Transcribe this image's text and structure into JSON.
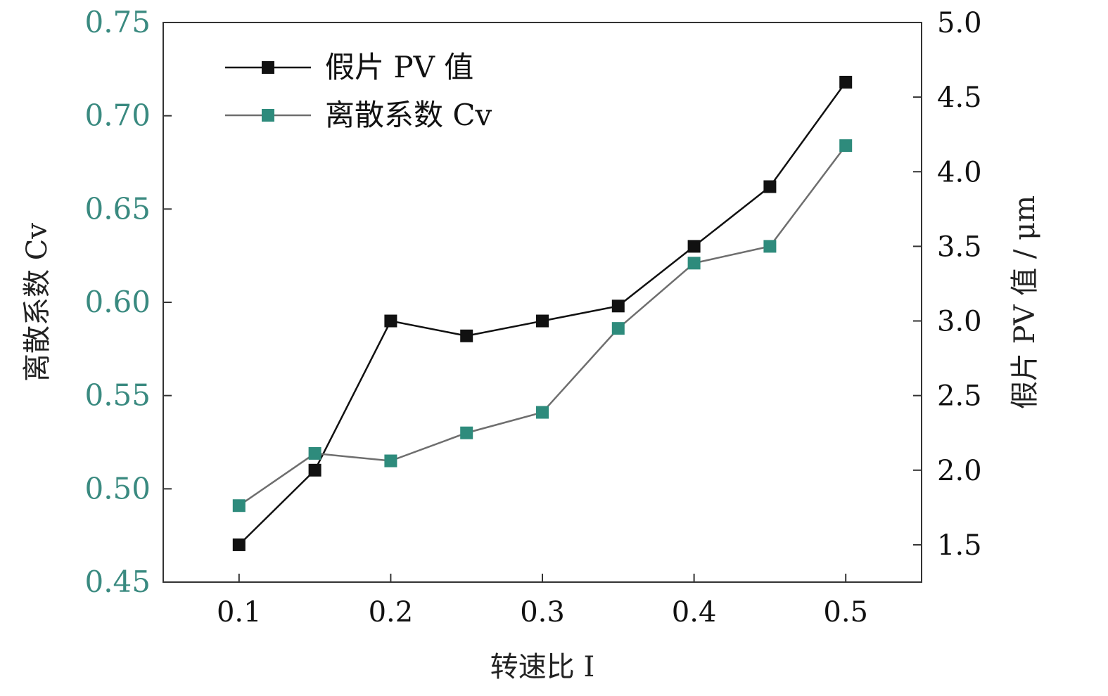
{
  "chart_data": {
    "type": "line",
    "x": [
      0.1,
      0.15,
      0.2,
      0.25,
      0.3,
      0.35,
      0.4,
      0.45,
      0.5
    ],
    "xlabel": "转速比 I",
    "xlim": [
      0.05,
      0.55
    ],
    "xticks": [
      "0.1",
      "0.2",
      "0.3",
      "0.4",
      "0.5"
    ],
    "series": [
      {
        "name": "假片 PV 值",
        "axis": "right",
        "color": "#111111",
        "marker": "square",
        "values": [
          1.5,
          2.0,
          3.0,
          2.9,
          3.0,
          3.1,
          3.5,
          3.9,
          4.6
        ]
      },
      {
        "name": "离散系数 Cv",
        "axis": "left",
        "color": "#2e8b7c",
        "line_color": "#6e6e6e",
        "marker": "square",
        "values": [
          0.491,
          0.519,
          0.515,
          0.53,
          0.541,
          0.586,
          0.621,
          0.63,
          0.684
        ]
      }
    ],
    "left_axis": {
      "label": "离散系数 Cv",
      "ylim": [
        0.45,
        0.75
      ],
      "ticks": [
        "0.45",
        "0.50",
        "0.55",
        "0.60",
        "0.65",
        "0.70",
        "0.75"
      ],
      "tick_color": "#3a8a80"
    },
    "right_axis": {
      "label": "假片 PV 值 / μm",
      "ylim": [
        1.25,
        5.0
      ],
      "ticks": [
        "1.5",
        "2.0",
        "2.5",
        "3.0",
        "3.5",
        "4.0",
        "4.5",
        "5.0"
      ]
    },
    "legend_position": "top-left",
    "grid": false
  }
}
